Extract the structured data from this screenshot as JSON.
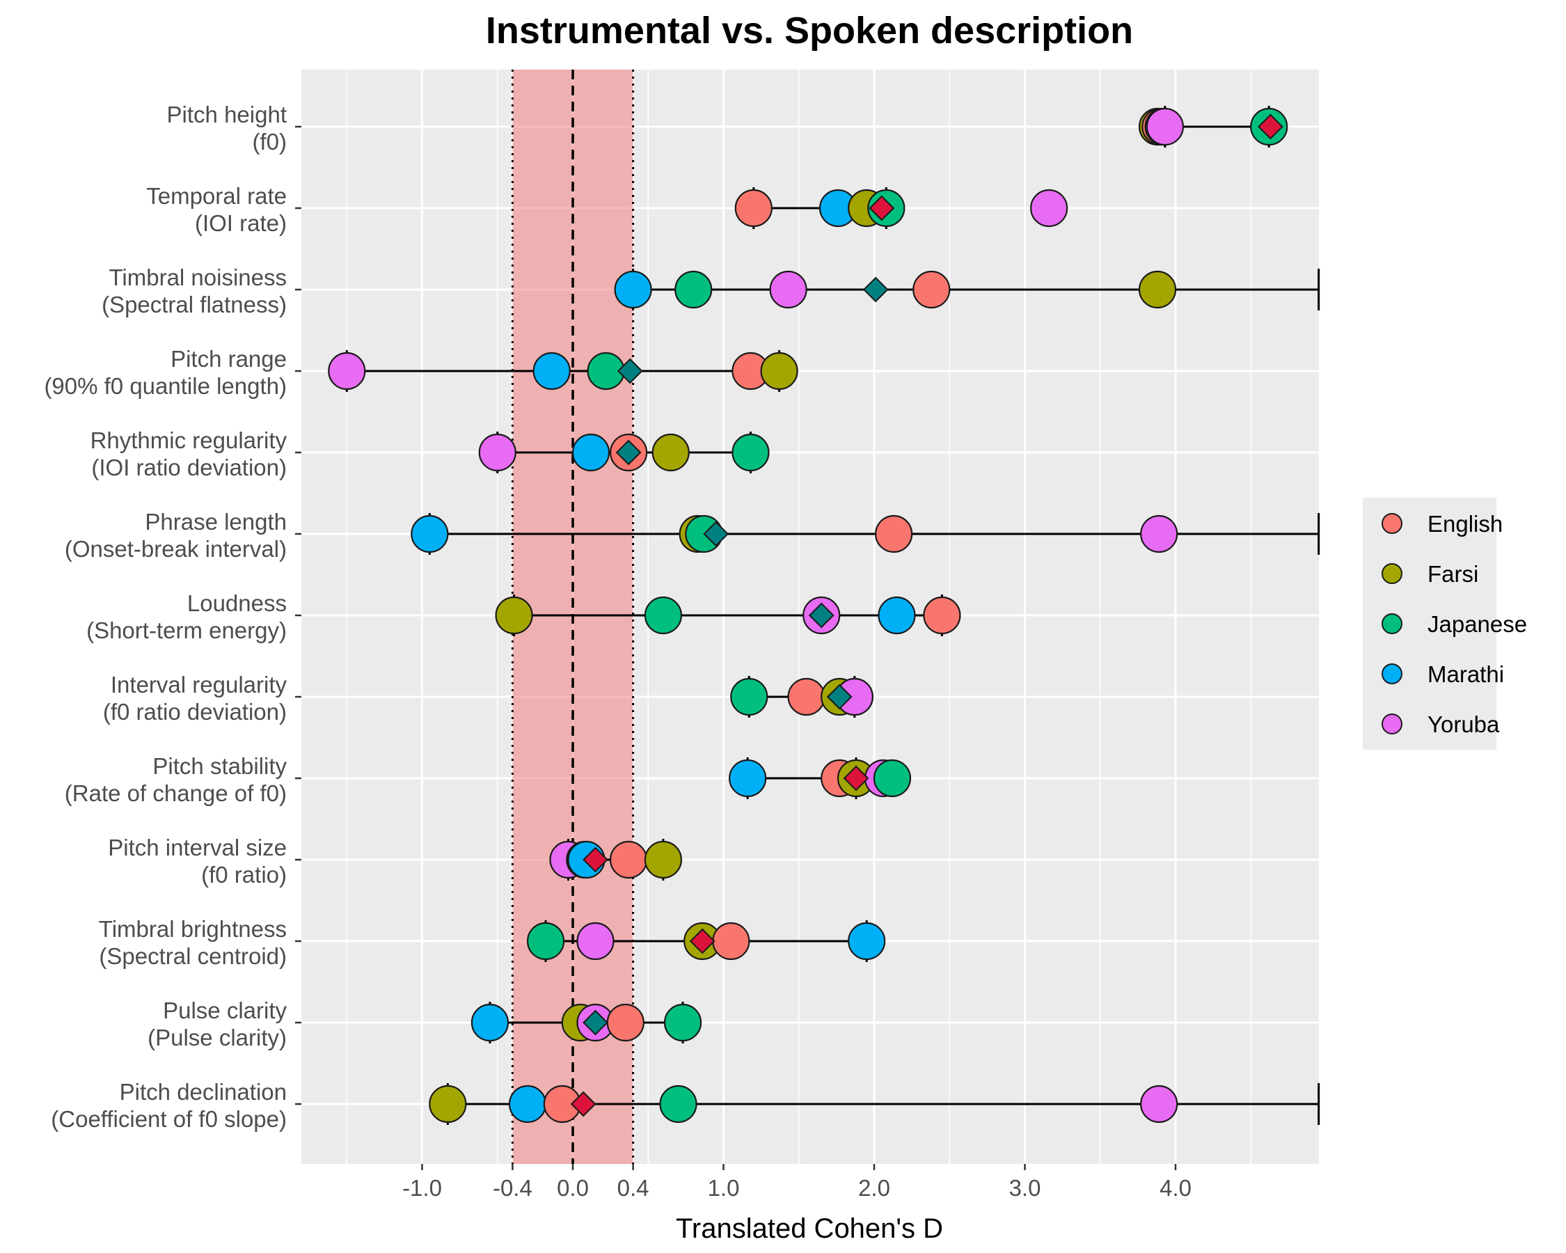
{
  "chart_data": {
    "type": "scatter",
    "title": "Instrumental vs. Spoken description",
    "xlabel": "Translated Cohen's D",
    "ylabel": "",
    "xlim": [
      -1.8,
      4.95
    ],
    "x_ticks": [
      -1.0,
      -0.4,
      0.0,
      0.4,
      1.0,
      2.0,
      3.0,
      4.0
    ],
    "x_tick_labels": [
      "-1.0",
      "-0.4",
      "0.0",
      "0.4",
      "1.0",
      "2.0",
      "3.0",
      "4.0"
    ],
    "x_minor_breaks": [
      -1.5,
      -0.5,
      0.5,
      1.5,
      2.5,
      3.5,
      4.5
    ],
    "grid": true,
    "legend_position": "right",
    "equivalence_band": [
      -0.4,
      0.4
    ],
    "reference_line": 0.0,
    "colors": {
      "English": "#F8766D",
      "Farsi": "#A3A500",
      "Japanese": "#00BF7D",
      "Marathi": "#00B0F6",
      "Yoruba": "#E76BF3",
      "band": "#F08080",
      "panel": "#EBEBEB",
      "mean_significant": "#DC143C",
      "mean_nonsignificant": "#008080"
    },
    "series_names": [
      "English",
      "Farsi",
      "Japanese",
      "Marathi",
      "Yoruba"
    ],
    "features": [
      {
        "label1": "Pitch height",
        "label2": "(f0)",
        "values": {
          "English": 3.9,
          "Farsi": 3.88,
          "Japanese": 4.62,
          "Marathi": 3.92,
          "Yoruba": 3.93
        },
        "ci": [
          3.93,
          4.62
        ],
        "mean": 4.63,
        "mean_significant": true
      },
      {
        "label1": "Temporal rate",
        "label2": "(IOI rate)",
        "values": {
          "English": 1.2,
          "Farsi": 1.95,
          "Japanese": 2.08,
          "Marathi": 1.76,
          "Yoruba": 3.16
        },
        "ci": [
          1.2,
          2.08
        ],
        "mean": 2.05,
        "mean_significant": true
      },
      {
        "label1": "Timbral noisiness",
        "label2": "(Spectral flatness)",
        "values": {
          "English": 2.38,
          "Farsi": 3.88,
          "Japanese": 0.8,
          "Marathi": 0.4,
          "Yoruba": 1.43
        },
        "ci": [
          0.4,
          4.95
        ],
        "mean": 2.01,
        "mean_significant": false
      },
      {
        "label1": "Pitch range",
        "label2": "(90% f0 quantile length)",
        "values": {
          "English": 1.18,
          "Farsi": 1.37,
          "Japanese": 0.22,
          "Marathi": -0.14,
          "Yoruba": -1.5
        },
        "ci": [
          -1.5,
          1.37
        ],
        "mean": 0.38,
        "mean_significant": false
      },
      {
        "label1": "Rhythmic regularity",
        "label2": "(IOI ratio deviation)",
        "values": {
          "English": 0.37,
          "Farsi": 0.65,
          "Japanese": 1.18,
          "Marathi": 0.12,
          "Yoruba": -0.5
        },
        "ci": [
          -0.5,
          1.18
        ],
        "mean": 0.37,
        "mean_significant": false
      },
      {
        "label1": "Phrase length",
        "label2": "(Onset-break interval)",
        "values": {
          "English": 2.13,
          "Farsi": 0.83,
          "Japanese": 0.87,
          "Marathi": -0.95,
          "Yoruba": 3.89
        },
        "ci": [
          -0.95,
          4.95
        ],
        "mean": 0.95,
        "mean_significant": false
      },
      {
        "label1": "Loudness",
        "label2": "(Short-term energy)",
        "values": {
          "English": 2.45,
          "Farsi": -0.39,
          "Japanese": 0.6,
          "Marathi": 2.15,
          "Yoruba": 1.65
        },
        "ci": [
          -0.39,
          2.45
        ],
        "mean": 1.65,
        "mean_significant": false
      },
      {
        "label1": "Interval regularity",
        "label2": "(f0 ratio deviation)",
        "values": {
          "English": 1.55,
          "Farsi": 1.77,
          "Japanese": 1.17,
          "Marathi": 1.87,
          "Yoruba": 1.87
        },
        "ci": [
          1.17,
          1.87
        ],
        "mean": 1.77,
        "mean_significant": false
      },
      {
        "label1": "Pitch stability",
        "label2": "(Rate of change of f0)",
        "values": {
          "English": 1.77,
          "Farsi": 1.88,
          "Japanese": 2.12,
          "Marathi": 1.16,
          "Yoruba": 2.06
        },
        "ci": [
          1.16,
          1.88
        ],
        "mean": 1.88,
        "mean_significant": true
      },
      {
        "label1": "Pitch interval size",
        "label2": "(f0 ratio)",
        "values": {
          "English": 0.37,
          "Farsi": 0.6,
          "Japanese": 0.08,
          "Marathi": 0.09,
          "Yoruba": -0.03
        },
        "ci": [
          -0.03,
          0.6
        ],
        "mean": 0.15,
        "mean_significant": true
      },
      {
        "label1": "Timbral brightness",
        "label2": "(Spectral centroid)",
        "values": {
          "English": 1.05,
          "Farsi": 0.86,
          "Japanese": -0.18,
          "Marathi": 1.95,
          "Yoruba": 0.15
        },
        "ci": [
          -0.18,
          1.95
        ],
        "mean": 0.86,
        "mean_significant": true
      },
      {
        "label1": "Pulse clarity",
        "label2": "(Pulse clarity)",
        "values": {
          "English": 0.35,
          "Farsi": 0.05,
          "Japanese": 0.73,
          "Marathi": -0.55,
          "Yoruba": 0.15
        },
        "ci": [
          -0.55,
          0.73
        ],
        "mean": 0.15,
        "mean_significant": false
      },
      {
        "label1": "Pitch declination",
        "label2": "(Coefficient of f0 slope)",
        "values": {
          "English": -0.07,
          "Farsi": -0.83,
          "Japanese": 0.7,
          "Marathi": -0.3,
          "Yoruba": 3.89
        },
        "ci": [
          -0.83,
          4.95
        ],
        "mean": 0.07,
        "mean_significant": true
      }
    ]
  }
}
